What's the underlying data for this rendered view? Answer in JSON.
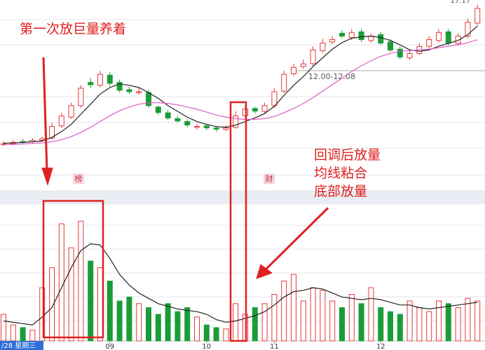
{
  "chart_data": {
    "type": "candlestick",
    "categories": [
      null,
      null,
      null,
      null,
      null,
      null,
      null,
      null,
      null,
      null,
      null,
      "09",
      null,
      null,
      null,
      null,
      null,
      null,
      null,
      null,
      null,
      "10",
      null,
      null,
      null,
      null,
      null,
      null,
      "11",
      null,
      null,
      null,
      null,
      null,
      null,
      null,
      null,
      null,
      null,
      "12",
      null,
      null,
      null,
      null,
      null,
      null,
      null,
      null,
      null,
      null
    ],
    "open": [
      7.5,
      7.56,
      7.72,
      7.7,
      7.8,
      7.95,
      8.8,
      9.4,
      10.2,
      11.8,
      11.6,
      12.3,
      11.8,
      11.3,
      11.1,
      11.1,
      10.1,
      9.7,
      9.3,
      9.1,
      8.7,
      8.8,
      8.65,
      8.55,
      8.7,
      9.5,
      10.0,
      9.8,
      10.2,
      11.2,
      12.4,
      12.9,
      13.1,
      14.0,
      14.6,
      15.2,
      14.9,
      15.3,
      14.7,
      15.1,
      14.6,
      14.1,
      13.5,
      13.8,
      14.3,
      14.7,
      15.3,
      14.5,
      15.0,
      15.9
    ],
    "high": [
      7.75,
      7.85,
      7.9,
      7.95,
      8.05,
      9.0,
      9.7,
      10.4,
      11.6,
      12.1,
      12.6,
      12.5,
      12.0,
      11.5,
      11.4,
      11.3,
      10.2,
      9.9,
      9.5,
      9.25,
      8.95,
      8.95,
      8.8,
      8.85,
      9.8,
      10.2,
      10.1,
      10.4,
      11.4,
      12.6,
      13.1,
      13.4,
      14.3,
      14.8,
      15.0,
      15.4,
      15.5,
      15.5,
      15.2,
      15.3,
      14.8,
      14.3,
      14.0,
      14.5,
      15.0,
      15.5,
      15.5,
      15.2,
      16.2,
      17.17
    ],
    "low": [
      7.4,
      7.45,
      7.55,
      7.6,
      7.7,
      7.85,
      8.65,
      9.3,
      10.05,
      11.4,
      11.45,
      11.55,
      11.1,
      11.0,
      10.95,
      10.05,
      9.55,
      9.2,
      9.0,
      8.7,
      8.55,
      8.5,
      8.4,
      8.45,
      8.6,
      9.35,
      9.65,
      9.7,
      10.05,
      11.05,
      12.25,
      12.75,
      12.95,
      13.85,
      14.45,
      14.85,
      14.75,
      14.6,
      14.55,
      14.4,
      13.9,
      13.4,
      13.35,
      13.7,
      14.15,
      14.55,
      14.35,
      14.35,
      14.85,
      15.75
    ],
    "close": [
      7.56,
      7.66,
      7.7,
      7.8,
      7.9,
      8.76,
      9.48,
      10.2,
      11.4,
      11.64,
      12.36,
      11.74,
      11.26,
      11.16,
      11.16,
      10.2,
      9.72,
      9.34,
      9.14,
      8.86,
      8.76,
      8.66,
      8.57,
      8.66,
      9.48,
      9.96,
      9.82,
      10.2,
      11.16,
      12.36,
      12.84,
      13.08,
      14.04,
      14.52,
      14.76,
      15.0,
      15.24,
      14.76,
      15.0,
      14.52,
      14.04,
      13.56,
      13.8,
      14.28,
      14.76,
      15.24,
      14.52,
      15.0,
      15.96,
      16.92
    ],
    "ylim": [
      7.0,
      17.4
    ],
    "up_color": "#e4393c",
    "down_color": "#1a9c38",
    "ma": [
      {
        "color": "#222222",
        "values": [
          7.6,
          7.62,
          7.66,
          7.7,
          7.75,
          8.0,
          8.4,
          8.9,
          9.6,
          10.3,
          11.0,
          11.45,
          11.7,
          11.6,
          11.45,
          11.1,
          10.7,
          10.2,
          9.8,
          9.4,
          9.1,
          8.9,
          8.75,
          8.7,
          8.85,
          9.1,
          9.35,
          9.65,
          10.15,
          10.9,
          11.6,
          12.2,
          12.9,
          13.5,
          14.1,
          14.55,
          14.85,
          14.95,
          15.0,
          14.9,
          14.7,
          14.4,
          14.05,
          13.95,
          14.05,
          14.3,
          14.5,
          14.7,
          15.1,
          15.7
        ]
      },
      {
        "color": "#e05ac8",
        "values": [
          7.5,
          7.52,
          7.55,
          7.58,
          7.62,
          7.7,
          7.85,
          8.05,
          8.35,
          8.7,
          9.1,
          9.5,
          9.85,
          10.1,
          10.3,
          10.4,
          10.4,
          10.35,
          10.25,
          10.1,
          9.95,
          9.75,
          9.55,
          9.4,
          9.3,
          9.25,
          9.25,
          9.3,
          9.45,
          9.7,
          10.0,
          10.35,
          10.75,
          11.2,
          11.65,
          12.1,
          12.55,
          12.95,
          13.3,
          13.6,
          13.8,
          13.95,
          14.0,
          14.05,
          14.1,
          14.2,
          14.3,
          14.4,
          14.55,
          14.75
        ]
      }
    ],
    "volume": {
      "values": [
        20,
        12,
        10,
        8,
        40,
        55,
        88,
        70,
        90,
        60,
        55,
        45,
        30,
        33,
        28,
        25,
        20,
        28,
        22,
        25,
        18,
        12,
        10,
        9,
        28,
        20,
        25,
        28,
        35,
        45,
        50,
        30,
        40,
        38,
        30,
        25,
        35,
        28,
        40,
        25,
        22,
        20,
        30,
        25,
        22,
        30,
        28,
        25,
        32,
        30
      ],
      "ylim": [
        0,
        100
      ],
      "ma": {
        "color": "#222222",
        "values": [
          15,
          14,
          13,
          12,
          18,
          25,
          40,
          55,
          68,
          73,
          72,
          62,
          50,
          42,
          36,
          32,
          28,
          26,
          24,
          23,
          22,
          20,
          16,
          14,
          15,
          17,
          19,
          22,
          27,
          33,
          37,
          38,
          40,
          39,
          36,
          33,
          32,
          31,
          32,
          31,
          29,
          27,
          27,
          25,
          24,
          25,
          26,
          27,
          28,
          29
        ]
      }
    },
    "annotations": {
      "title": "第一次放巨量养着",
      "lines": [
        "回调后放量",
        "均线粘合",
        "底部放量"
      ],
      "tags": [
        "榜",
        "财"
      ],
      "gap": "12.00-12.08",
      "date": "/28 星期三"
    }
  }
}
